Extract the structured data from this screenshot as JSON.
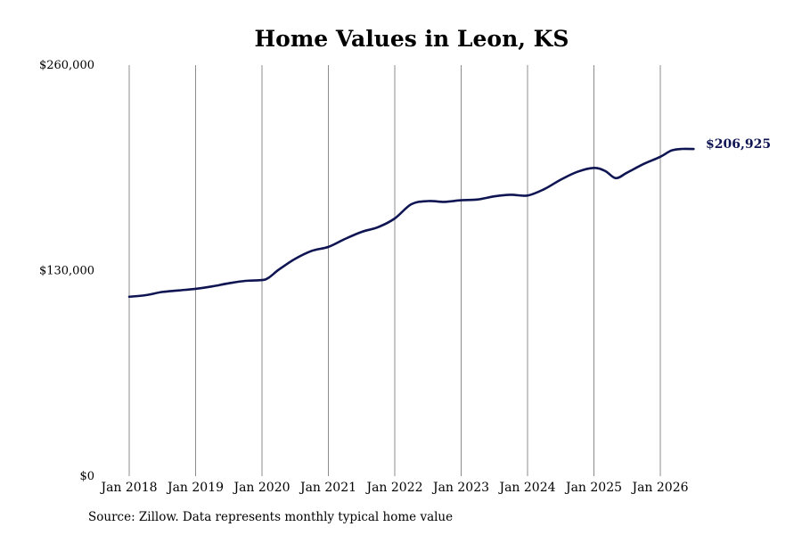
{
  "chart_data": {
    "type": "line",
    "title": "Home Values in Leon, KS",
    "xlabel": "",
    "ylabel": "",
    "ylim": [
      0,
      260000
    ],
    "yticks": [
      {
        "value": 0,
        "label": "$0"
      },
      {
        "value": 130000,
        "label": "$130,000"
      },
      {
        "value": 260000,
        "label": "$260,000"
      }
    ],
    "xticks": [
      {
        "value": 2018,
        "label": "Jan 2018"
      },
      {
        "value": 2019,
        "label": "Jan 2019"
      },
      {
        "value": 2020,
        "label": "Jan 2020"
      },
      {
        "value": 2021,
        "label": "Jan 2021"
      },
      {
        "value": 2022,
        "label": "Jan 2022"
      },
      {
        "value": 2023,
        "label": "Jan 2023"
      },
      {
        "value": 2024,
        "label": "Jan 2024"
      },
      {
        "value": 2025,
        "label": "Jan 2025"
      },
      {
        "value": 2026,
        "label": "Jan 2026"
      }
    ],
    "xlim": [
      2018,
      2026.5
    ],
    "grid": {
      "vertical": true,
      "horizontal": false
    },
    "line_color": "#0f1553",
    "series": [
      {
        "x": [
          2018.0,
          2018.25,
          2018.5,
          2018.75,
          2019.0,
          2019.25,
          2019.5,
          2019.75,
          2020.0,
          2020.1,
          2020.25,
          2020.5,
          2020.75,
          2021.0,
          2021.25,
          2021.5,
          2021.75,
          2022.0,
          2022.25,
          2022.5,
          2022.75,
          2023.0,
          2023.25,
          2023.5,
          2023.75,
          2024.0,
          2024.25,
          2024.5,
          2024.75,
          2025.0,
          2025.17,
          2025.33,
          2025.5,
          2025.75,
          2026.0,
          2026.17,
          2026.33,
          2026.5
        ],
        "values": [
          113500,
          114500,
          116500,
          117500,
          118500,
          120000,
          122000,
          123500,
          124000,
          125500,
          130500,
          137500,
          142500,
          145000,
          150000,
          154500,
          157500,
          163000,
          172000,
          174000,
          173500,
          174500,
          175000,
          177000,
          178000,
          177500,
          181500,
          187500,
          192500,
          195000,
          193000,
          188500,
          192000,
          197500,
          202000,
          206000,
          207000,
          206925
        ]
      }
    ],
    "end_label": "$206,925"
  },
  "footer": {
    "source": "Source: Zillow. Data represents monthly typical home value"
  }
}
